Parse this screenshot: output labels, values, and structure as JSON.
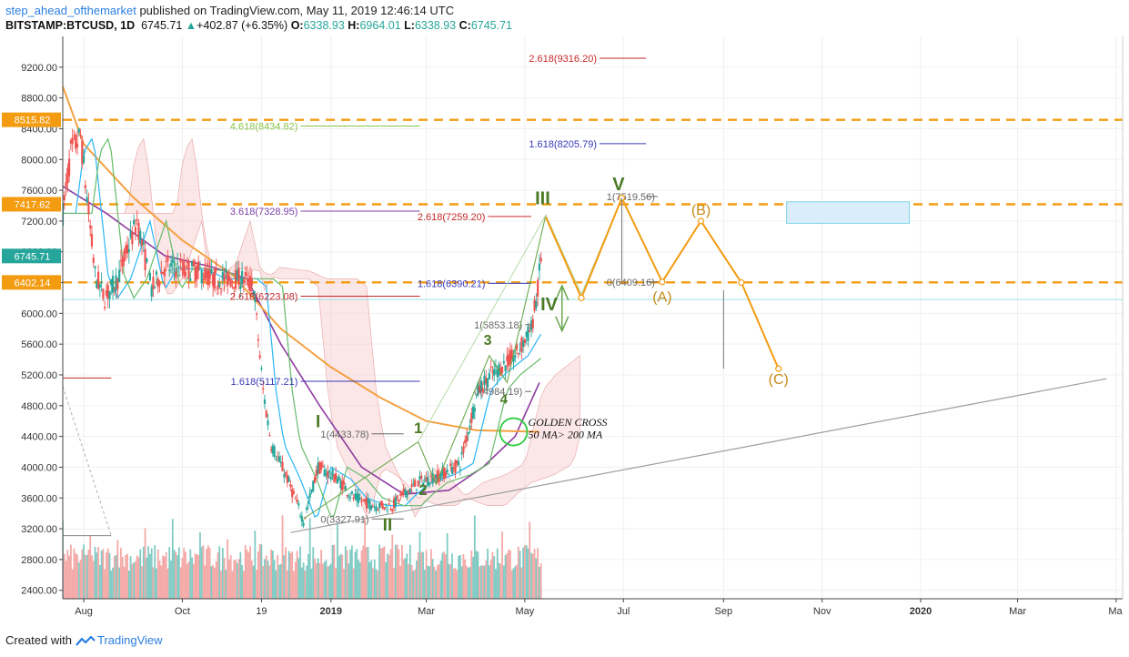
{
  "header": {
    "author": "step_ahead_ofthemarket",
    "published": " published on TradingView.com, May 11, 2019 12:46:14 UTC",
    "symbol": "BITSTAMP:BTCUSD, 1D",
    "last": "6745.71",
    "change": "+402.87 (+6.35%)",
    "open_label": "O:",
    "open": "6338.93",
    "high_label": "H:",
    "high": "6964.01",
    "low_label": "L:",
    "low": "6338.93",
    "close_label": "C:",
    "close": "6745.71"
  },
  "footer": {
    "created_with": "Created with",
    "brand": "TradingView"
  },
  "colors": {
    "up": "#26a69a",
    "down": "#ef5350",
    "orange": "#f39c12",
    "green_line": "#6aa84f",
    "fib_red": "#c62828",
    "fib_blue": "#3a3ab8",
    "fib_purple": "#7b3fa8",
    "fib_lime": "#8bc34a",
    "fib_grey": "#666666",
    "wave_green": "#4b7a26",
    "wave_orange": "#c68a17",
    "ma_orange": "#f5a142",
    "ma_purple": "#8e3c9e"
  },
  "chart_data": {
    "type": "line",
    "title": "",
    "y_axis": {
      "ticks": [
        2400,
        2800,
        3200,
        3600,
        4000,
        4400,
        4800,
        5200,
        5600,
        6000,
        6400,
        6800,
        7200,
        7600,
        8000,
        8400,
        8800,
        9200
      ],
      "ylim": [
        2290,
        9600
      ]
    },
    "x_axis": {
      "labels": [
        "Aug",
        "Oct",
        "19",
        "2019",
        "Mar",
        "May",
        "Jul",
        "Sep",
        "Nov",
        "2020",
        "Mar",
        "Ma"
      ],
      "label_dates": [
        "2018-08-01",
        "2018-10-01",
        "2018-11-19",
        "2019-01-01",
        "2019-03-01",
        "2019-05-01",
        "2019-07-01",
        "2019-09-01",
        "2019-11-01",
        "2020-01-01",
        "2020-03-01",
        "2020-05-01"
      ],
      "xlim": [
        "2018-07-19",
        "2020-05-05"
      ]
    },
    "price_tags": [
      {
        "value": 8515.82,
        "label": "8515.82",
        "color": "#f39c12"
      },
      {
        "value": 7417.62,
        "label": "7417.62",
        "color": "#f39c12"
      },
      {
        "value": 6745.71,
        "label": "6745.71",
        "color": "#26a69a"
      },
      {
        "value": 6402.14,
        "label": "6402.14",
        "color": "#f39c12"
      }
    ],
    "horizontal_levels": [
      {
        "value": 8515.82
      },
      {
        "value": 7417.62
      },
      {
        "value": 6402.14
      }
    ],
    "price_series": {
      "name": "BTCUSD",
      "x": [
        "2018-07-19",
        "2018-07-24",
        "2018-07-30",
        "2018-08-08",
        "2018-08-14",
        "2018-08-22",
        "2018-09-03",
        "2018-09-12",
        "2018-09-20",
        "2018-10-10",
        "2018-10-20",
        "2018-11-08",
        "2018-11-14",
        "2018-11-20",
        "2018-11-25",
        "2018-12-05",
        "2018-12-15",
        "2018-12-24",
        "2019-01-05",
        "2019-01-15",
        "2019-01-28",
        "2019-02-08",
        "2019-02-15",
        "2019-02-24",
        "2019-03-10",
        "2019-03-22",
        "2019-04-02",
        "2019-04-10",
        "2019-04-25",
        "2019-05-05",
        "2019-05-09",
        "2019-05-11"
      ],
      "values": [
        7300,
        8100,
        8300,
        6500,
        6200,
        6450,
        7200,
        6300,
        6600,
        6550,
        6450,
        6450,
        6350,
        5000,
        4300,
        3850,
        3300,
        4000,
        3850,
        3600,
        3500,
        3500,
        3650,
        3800,
        3900,
        4050,
        5000,
        5200,
        5450,
        5800,
        6300,
        6745.71
      ]
    },
    "moving_averages": [
      {
        "name": "50 MA",
        "color": "#8e3c9e",
        "x": [
          "2018-07-19",
          "2018-08-15",
          "2018-09-20",
          "2018-10-20",
          "2018-11-10",
          "2018-12-01",
          "2018-12-25",
          "2019-01-20",
          "2019-02-15",
          "2019-03-15",
          "2019-04-05",
          "2019-04-25",
          "2019-05-10"
        ],
        "values": [
          7650,
          7300,
          6750,
          6600,
          6450,
          5600,
          4800,
          4000,
          3650,
          3700,
          4000,
          4400,
          5100
        ]
      },
      {
        "name": "200 MA",
        "color": "#f5a142",
        "x": [
          "2018-07-19",
          "2018-08-01",
          "2018-09-01",
          "2018-10-01",
          "2018-11-01",
          "2018-12-01",
          "2019-01-01",
          "2019-02-01",
          "2019-03-01",
          "2019-04-01",
          "2019-05-10"
        ],
        "values": [
          8950,
          8200,
          7500,
          6950,
          6500,
          5800,
          5300,
          4900,
          4600,
          4480,
          4460
        ]
      }
    ],
    "fib_labels": [
      {
        "text": "2.618(9316.20)",
        "value": 9316.2,
        "color": "#c62828"
      },
      {
        "text": "4.618(8434.82)",
        "value": 8434.82,
        "color": "#8bc34a"
      },
      {
        "text": "1.618(8205.79)",
        "value": 8205.79,
        "color": "#3a3ab8"
      },
      {
        "text": "1(7519.56)",
        "value": 7519.56,
        "color": "#666666"
      },
      {
        "text": "3.618(7328.95)",
        "value": 7328.95,
        "color": "#7b3fa8"
      },
      {
        "text": "2.618(7259.20)",
        "value": 7259.2,
        "color": "#c62828"
      },
      {
        "text": "0(6409.16)",
        "value": 6409.16,
        "color": "#666666"
      },
      {
        "text": "1.618(6390.21)",
        "value": 6390.21,
        "color": "#3a3ab8"
      },
      {
        "text": "2.618(6223.08)",
        "value": 6223.08,
        "color": "#c62828"
      },
      {
        "text": "1(5853.18)",
        "value": 5853.18,
        "color": "#666666"
      },
      {
        "text": "1.618(5117.21)",
        "value": 5117.21,
        "color": "#3a3ab8"
      },
      {
        "text": "0(4984.19)",
        "value": 4984.19,
        "color": "#666666"
      },
      {
        "text": "1(4433.78)",
        "value": 4433.78,
        "color": "#666666"
      },
      {
        "text": "0(3327.91)",
        "value": 3327.91,
        "color": "#666666"
      }
    ],
    "wave_labels": [
      {
        "text": "I",
        "color": "#4b7a26"
      },
      {
        "text": "II",
        "color": "#4b7a26"
      },
      {
        "text": "III",
        "color": "#4b7a26"
      },
      {
        "text": "IV",
        "color": "#4b7a26"
      },
      {
        "text": "V",
        "color": "#4b7a26"
      },
      {
        "text": "1",
        "color": "#4b7a26"
      },
      {
        "text": "2",
        "color": "#4b7a26"
      },
      {
        "text": "3",
        "color": "#4b7a26"
      },
      {
        "text": "4",
        "color": "#4b7a26"
      },
      {
        "text": "(A)",
        "color": "#c68a17"
      },
      {
        "text": "(B)",
        "color": "#c68a17"
      },
      {
        "text": "(C)",
        "color": "#c68a17"
      }
    ],
    "projection_path": {
      "name": "Elliott wave projection",
      "x": [
        "2019-05-14",
        "2019-06-05",
        "2019-06-30",
        "2019-07-25",
        "2019-08-18",
        "2019-09-12",
        "2019-10-05"
      ],
      "values": [
        7250,
        6200,
        7500,
        6409,
        7200,
        6400,
        5280
      ]
    },
    "annotations": [
      "GOLDEN CROSS",
      "50 MA> 200 MA"
    ],
    "volume": {
      "description": "daily volume bars, bottom band"
    }
  }
}
